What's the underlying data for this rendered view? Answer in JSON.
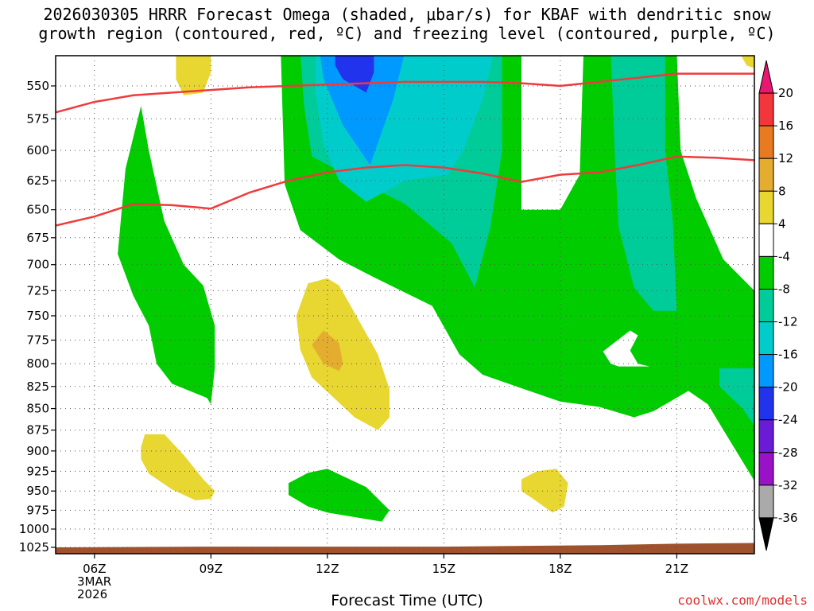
{
  "chart_data": {
    "type": "heatmap",
    "title_line1": "2026030305 HRRR Forecast Omega (shaded, μbar/s) for KBAF with dendritic snow",
    "title_line2": "growth region (contoured, red, ºC) and freezing level (contoured, purple, ºC)",
    "xlabel": "Forecast Time (UTC)",
    "date_label": [
      "3MAR",
      "2026"
    ],
    "x_ticks": [
      {
        "hour": 6,
        "label": "06Z"
      },
      {
        "hour": 9,
        "label": "09Z"
      },
      {
        "hour": 12,
        "label": "12Z"
      },
      {
        "hour": 15,
        "label": "15Z"
      },
      {
        "hour": 18,
        "label": "18Z"
      },
      {
        "hour": 21,
        "label": "21Z"
      }
    ],
    "xlim": [
      5,
      23
    ],
    "y_ticks": [
      550,
      575,
      600,
      625,
      650,
      675,
      700,
      725,
      750,
      775,
      800,
      825,
      850,
      875,
      900,
      925,
      950,
      975,
      1000,
      1025
    ],
    "ylim": [
      525,
      1030
    ],
    "y_scale": "log-pressure (hPa)",
    "colorbar": {
      "labels": [
        20,
        16,
        12,
        8,
        4,
        -4,
        -8,
        -12,
        -16,
        -20,
        -24,
        -28,
        -32,
        -36
      ],
      "colors": [
        "#e8176f",
        "#f3353c",
        "#e87b1f",
        "#e5ad2f",
        "#e8d631",
        "#ffffff",
        "#00cc00",
        "#00cc99",
        "#00cccc",
        "#0099ff",
        "#2233ee",
        "#6a1bd6",
        "#9a12c8",
        "#aaaaaa",
        "#000000"
      ]
    },
    "dgz_top_line": [
      [
        5,
        570
      ],
      [
        6,
        562
      ],
      [
        7,
        557
      ],
      [
        8,
        555
      ],
      [
        9,
        553
      ],
      [
        10,
        551
      ],
      [
        11,
        550
      ],
      [
        12,
        549
      ],
      [
        13,
        548
      ],
      [
        14,
        547
      ],
      [
        15,
        547
      ],
      [
        16,
        547
      ],
      [
        17,
        548
      ],
      [
        18,
        550
      ],
      [
        19,
        547
      ],
      [
        20,
        544
      ],
      [
        21,
        541
      ],
      [
        22,
        541
      ],
      [
        23,
        541
      ]
    ],
    "dgz_bottom_line": [
      [
        5,
        664
      ],
      [
        6,
        656
      ],
      [
        7,
        645
      ],
      [
        8,
        646
      ],
      [
        9,
        649
      ],
      [
        10,
        635
      ],
      [
        11,
        625
      ],
      [
        12,
        618
      ],
      [
        13,
        614
      ],
      [
        14,
        612
      ],
      [
        15,
        614
      ],
      [
        16,
        619
      ],
      [
        17,
        626
      ],
      [
        18,
        620
      ],
      [
        19,
        618
      ],
      [
        20,
        612
      ],
      [
        21,
        605
      ],
      [
        22,
        606
      ],
      [
        23,
        608
      ]
    ],
    "regions": [
      {
        "name": "green-lower-left",
        "band": "-4 to -8",
        "pts": [
          [
            6.6,
            690
          ],
          [
            6.8,
            615
          ],
          [
            7.2,
            565
          ],
          [
            7.4,
            600
          ],
          [
            7.8,
            660
          ],
          [
            8.3,
            700
          ],
          [
            8.8,
            720
          ],
          [
            9.1,
            760
          ],
          [
            9.1,
            805
          ],
          [
            9.0,
            845
          ],
          [
            8.9,
            838
          ],
          [
            8.0,
            822
          ],
          [
            7.6,
            800
          ],
          [
            7.4,
            760
          ],
          [
            7.0,
            730
          ]
        ]
      },
      {
        "name": "green-main",
        "band": "-4 to -8",
        "pts": [
          [
            10.8,
            525
          ],
          [
            17.0,
            525
          ],
          [
            17.0,
            650
          ],
          [
            18.0,
            650
          ],
          [
            18.5,
            620
          ],
          [
            18.6,
            525
          ],
          [
            19.9,
            525
          ],
          [
            21.0,
            525
          ],
          [
            21.1,
            600
          ],
          [
            21.5,
            640
          ],
          [
            22.2,
            695
          ],
          [
            23.0,
            725
          ],
          [
            23.0,
            937
          ],
          [
            22.4,
            890
          ],
          [
            21.8,
            845
          ],
          [
            21.3,
            830
          ],
          [
            20.4,
            853
          ],
          [
            19.9,
            860
          ],
          [
            19.0,
            848
          ],
          [
            18.0,
            842
          ],
          [
            17.0,
            827
          ],
          [
            16.0,
            812
          ],
          [
            15.4,
            790
          ],
          [
            14.7,
            740
          ],
          [
            13.2,
            712
          ],
          [
            12.3,
            695
          ],
          [
            11.3,
            668
          ],
          [
            10.9,
            628
          ]
        ]
      },
      {
        "name": "green-mid-right",
        "band": "-8 to -12",
        "pts": [
          [
            19.3,
            525
          ],
          [
            20.7,
            525
          ],
          [
            20.7,
            600
          ],
          [
            20.9,
            660
          ],
          [
            21.0,
            745
          ],
          [
            20.4,
            745
          ],
          [
            19.9,
            722
          ],
          [
            19.5,
            665
          ],
          [
            19.4,
            600
          ]
        ]
      },
      {
        "name": "green-mid-core",
        "band": "-8 to -12",
        "pts": [
          [
            11.3,
            525
          ],
          [
            16.5,
            525
          ],
          [
            16.5,
            600
          ],
          [
            16.2,
            665
          ],
          [
            15.8,
            722
          ],
          [
            15.2,
            680
          ],
          [
            14.0,
            645
          ],
          [
            12.5,
            620
          ],
          [
            11.6,
            605
          ],
          [
            11.4,
            565
          ]
        ]
      },
      {
        "name": "green-mid-low-right",
        "band": "-8 to -12",
        "pts": [
          [
            23.0,
            805
          ],
          [
            22.1,
            805
          ],
          [
            22.1,
            825
          ],
          [
            22.7,
            850
          ],
          [
            23.0,
            870
          ]
        ]
      },
      {
        "name": "cyan-core",
        "band": "-12 to -16",
        "pts": [
          [
            11.7,
            525
          ],
          [
            16.3,
            525
          ],
          [
            16.0,
            560
          ],
          [
            15.5,
            600
          ],
          [
            15.1,
            620
          ],
          [
            14.0,
            625
          ],
          [
            13.0,
            643
          ],
          [
            12.3,
            625
          ],
          [
            11.9,
            595
          ],
          [
            11.7,
            555
          ]
        ]
      },
      {
        "name": "blue-core",
        "band": "-16 to -20",
        "pts": [
          [
            11.8,
            525
          ],
          [
            14.0,
            525
          ],
          [
            13.7,
            560
          ],
          [
            13.1,
            612
          ],
          [
            12.4,
            580
          ],
          [
            11.9,
            545
          ]
        ]
      },
      {
        "name": "navy-core",
        "band": "-20 to -24",
        "pts": [
          [
            12.2,
            525
          ],
          [
            13.2,
            525
          ],
          [
            13.2,
            540
          ],
          [
            13.0,
            555
          ],
          [
            12.4,
            545
          ],
          [
            12.2,
            535
          ]
        ]
      },
      {
        "name": "white-hole-right",
        "band": "-4 to 4",
        "pts": [
          [
            19.8,
            765
          ],
          [
            19.1,
            787
          ],
          [
            19.3,
            800
          ],
          [
            19.5,
            803
          ],
          [
            20.3,
            803
          ],
          [
            20.0,
            800
          ],
          [
            19.8,
            786
          ],
          [
            20.0,
            770
          ]
        ]
      },
      {
        "name": "green-low-center",
        "band": "-4 to -8",
        "pts": [
          [
            11.0,
            940
          ],
          [
            11.5,
            927
          ],
          [
            12.0,
            922
          ],
          [
            13.0,
            945
          ],
          [
            13.6,
            975
          ],
          [
            13.4,
            990
          ],
          [
            12.0,
            978
          ],
          [
            11.5,
            970
          ],
          [
            11.0,
            955
          ]
        ]
      },
      {
        "name": "yellow-top-left",
        "band": "4 to 8",
        "pts": [
          [
            8.1,
            525
          ],
          [
            9.0,
            525
          ],
          [
            9.0,
            540
          ],
          [
            8.8,
            555
          ],
          [
            8.3,
            557
          ],
          [
            8.1,
            545
          ]
        ]
      },
      {
        "name": "yellow-top-right",
        "band": "4 to 8",
        "pts": [
          [
            22.6,
            525
          ],
          [
            23.0,
            525
          ],
          [
            23.0,
            537
          ],
          [
            22.8,
            535
          ]
        ]
      },
      {
        "name": "yellow-center",
        "band": "4 to 8",
        "pts": [
          [
            11.2,
            750
          ],
          [
            11.5,
            718
          ],
          [
            12.0,
            713
          ],
          [
            12.3,
            720
          ],
          [
            12.6,
            740
          ],
          [
            13.3,
            790
          ],
          [
            13.6,
            828
          ],
          [
            13.6,
            860
          ],
          [
            13.3,
            875
          ],
          [
            12.7,
            860
          ],
          [
            12.1,
            835
          ],
          [
            11.6,
            815
          ],
          [
            11.3,
            785
          ]
        ]
      },
      {
        "name": "orange-center",
        "band": "8 to 12",
        "pts": [
          [
            11.6,
            780
          ],
          [
            11.9,
            765
          ],
          [
            12.3,
            778
          ],
          [
            12.4,
            800
          ],
          [
            12.3,
            808
          ],
          [
            11.9,
            800
          ]
        ]
      },
      {
        "name": "yellow-lower-left",
        "band": "4 to 8",
        "pts": [
          [
            7.2,
            895
          ],
          [
            7.3,
            880
          ],
          [
            7.8,
            880
          ],
          [
            8.3,
            905
          ],
          [
            8.8,
            935
          ],
          [
            9.1,
            950
          ],
          [
            9.0,
            960
          ],
          [
            8.6,
            962
          ],
          [
            8.0,
            948
          ],
          [
            7.4,
            928
          ],
          [
            7.2,
            910
          ]
        ]
      },
      {
        "name": "yellow-lower-right",
        "band": "4 to 8",
        "pts": [
          [
            17.0,
            935
          ],
          [
            17.4,
            925
          ],
          [
            17.9,
            922
          ],
          [
            18.2,
            940
          ],
          [
            18.1,
            970
          ],
          [
            17.8,
            978
          ],
          [
            17.3,
            960
          ],
          [
            17.0,
            950
          ]
        ]
      }
    ],
    "terrain_top_hpa": [
      [
        5,
        1025
      ],
      [
        9,
        1024
      ],
      [
        15,
        1024
      ],
      [
        19,
        1022
      ],
      [
        21,
        1020
      ],
      [
        23,
        1019
      ]
    ]
  },
  "credit": "coolwx.com/models"
}
